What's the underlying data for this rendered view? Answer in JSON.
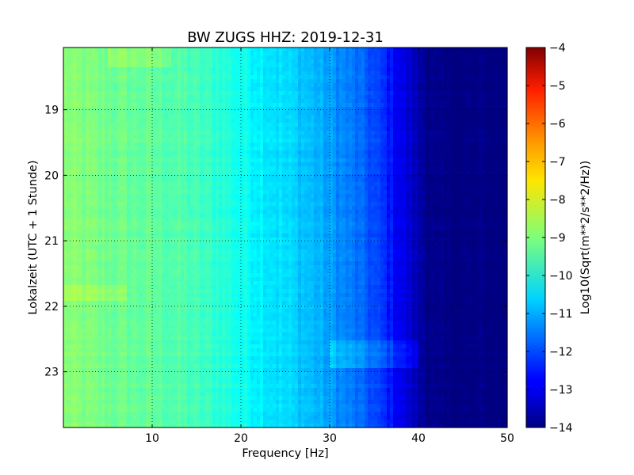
{
  "chart_data": {
    "type": "heatmap",
    "title": "BW ZUGS HHZ: 2019-12-31",
    "xlabel": "Frequency [Hz]",
    "ylabel": "Lokalzeit (UTC + 1 Stunde)",
    "xlim": [
      0,
      50
    ],
    "ylim": [
      18.05,
      23.85
    ],
    "y_inverted": true,
    "x_ticks": [
      10,
      20,
      30,
      40,
      50
    ],
    "x_tick_labels": [
      "10",
      "20",
      "30",
      "40",
      "50"
    ],
    "y_ticks": [
      19,
      20,
      21,
      22,
      23
    ],
    "y_tick_labels": [
      "19",
      "20",
      "21",
      "22",
      "23"
    ],
    "grid": true,
    "colormap": "jet",
    "colorbar": {
      "label": "Log10(Sqrt(m**2/s**2/Hz))",
      "range": [
        -14,
        -4
      ],
      "ticks": [
        -4,
        -5,
        -6,
        -7,
        -8,
        -9,
        -10,
        -11,
        -12,
        -13,
        -14
      ],
      "tick_labels": [
        "−4",
        "−5",
        "−6",
        "−7",
        "−8",
        "−9",
        "−10",
        "−11",
        "−12",
        "−13",
        "−14"
      ]
    },
    "frequency_profile": {
      "frequency_hz": [
        0,
        2,
        5,
        8,
        10,
        12,
        15,
        18,
        20,
        22,
        25,
        28,
        30,
        32,
        34,
        36,
        37,
        38,
        39,
        40,
        41,
        42,
        45,
        50
      ],
      "log10_amplitude": [
        -8.9,
        -9.0,
        -9.15,
        -9.25,
        -9.3,
        -9.4,
        -9.6,
        -9.85,
        -10.1,
        -10.3,
        -10.6,
        -10.9,
        -11.2,
        -11.5,
        -11.85,
        -12.3,
        -12.6,
        -12.9,
        -13.2,
        -13.5,
        -13.8,
        -14.0,
        -14.0,
        -14.0
      ]
    }
  }
}
